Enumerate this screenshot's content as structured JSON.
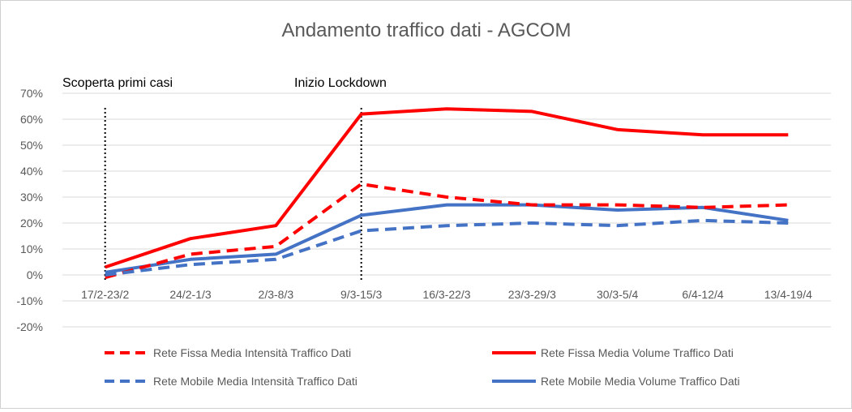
{
  "chart_data": {
    "type": "line",
    "title": "Andamento traffico dati - AGCOM",
    "xlabel": "",
    "ylabel": "",
    "categories": [
      "17/2-23/2",
      "24/2-1/3",
      "2/3-8/3",
      "9/3-15/3",
      "16/3-22/3",
      "23/3-29/3",
      "30/3-5/4",
      "6/4-12/4",
      "13/4-19/4"
    ],
    "y_ticks": [
      "70%",
      "60%",
      "50%",
      "40%",
      "30%",
      "20%",
      "10%",
      "0%",
      "-10%",
      "-20%"
    ],
    "ylim": [
      -20,
      70
    ],
    "grid": true,
    "legend_position": "bottom",
    "series": [
      {
        "name": "Rete Fissa Media Intensità Traffico Dati",
        "color": "#ff0000",
        "dashed": true,
        "values": [
          -1,
          8,
          11,
          35,
          30,
          27,
          27,
          26,
          27
        ]
      },
      {
        "name": "Rete Fissa Media Volume Traffico Dati",
        "color": "#ff0000",
        "dashed": false,
        "values": [
          3,
          14,
          19,
          62,
          64,
          63,
          56,
          54,
          54
        ]
      },
      {
        "name": "Rete Mobile Media Intensità Traffico Dati",
        "color": "#4472c4",
        "dashed": true,
        "values": [
          0,
          4,
          6,
          17,
          19,
          20,
          19,
          21,
          20
        ]
      },
      {
        "name": "Rete Mobile Media Volume Traffico Dati",
        "color": "#4472c4",
        "dashed": false,
        "values": [
          1,
          6,
          8,
          23,
          27,
          27,
          25,
          26,
          21
        ]
      }
    ],
    "annotations": [
      {
        "text": "Scoperta primi casi",
        "category_index": 0
      },
      {
        "text": "Inizio Lockdown",
        "category_index": 3
      }
    ]
  }
}
